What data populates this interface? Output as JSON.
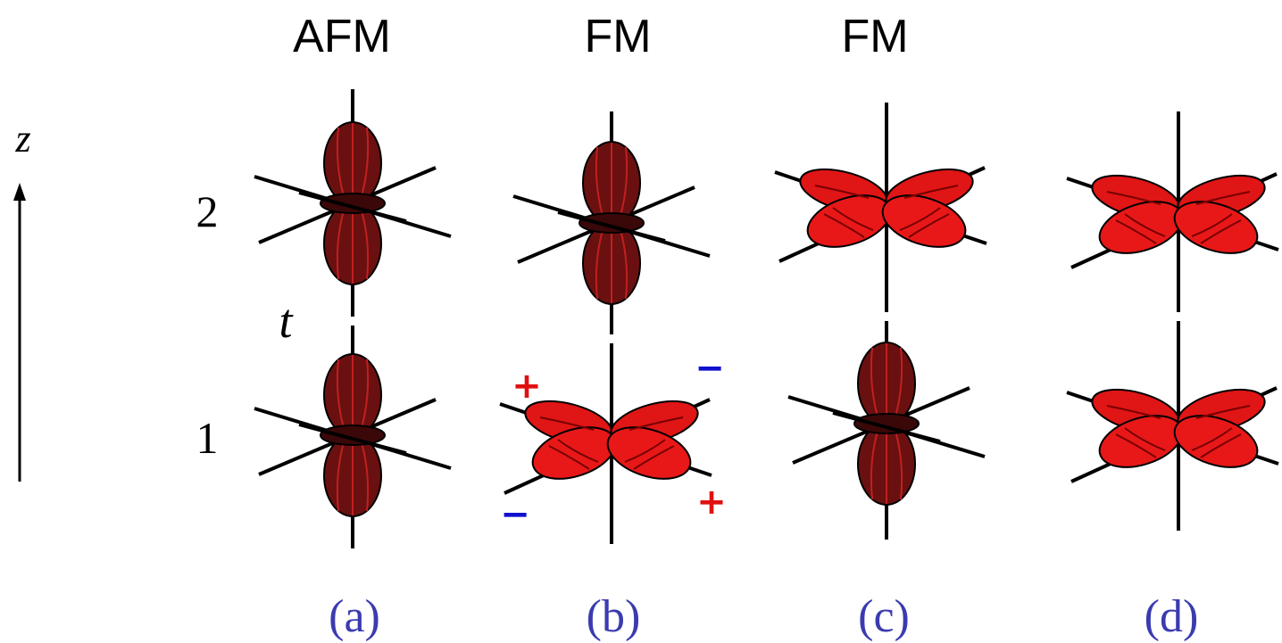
{
  "column_titles": [
    "AFM",
    "FM",
    "FM"
  ],
  "axis_label": "z",
  "site_labels": [
    "2",
    "1"
  ],
  "hopping_label": "t",
  "signs": [
    "+",
    "−",
    "−",
    "+"
  ],
  "panel_labels": [
    "(a)",
    "(b)",
    "(c)",
    "(d)"
  ]
}
